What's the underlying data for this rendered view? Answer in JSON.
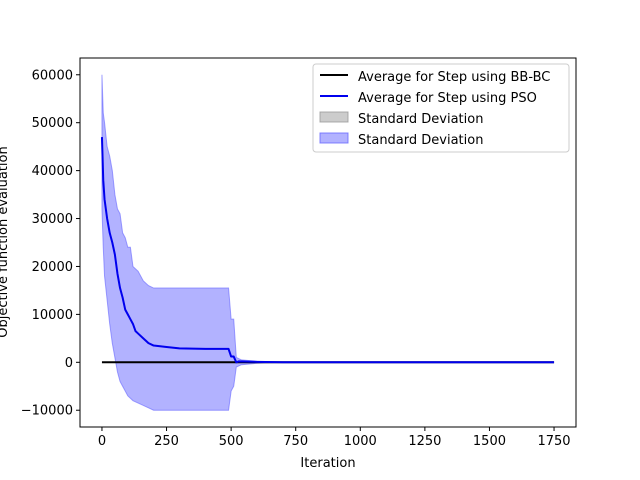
{
  "chart_data": {
    "type": "line",
    "xlabel": "Iteration",
    "ylabel": "Objective function evaluation",
    "xlim": [
      -85,
      1835
    ],
    "ylim": [
      -13500,
      63500
    ],
    "xticks": [
      0,
      250,
      500,
      750,
      1000,
      1250,
      1500,
      1750
    ],
    "yticks": [
      -10000,
      0,
      10000,
      20000,
      30000,
      40000,
      50000,
      60000
    ],
    "grid": false,
    "legend_position": "upper right",
    "series": [
      {
        "name": "Average for Step using BB-BC",
        "kind": "line",
        "color": "#000000",
        "x": [
          0,
          1750
        ],
        "y": [
          0,
          0
        ]
      },
      {
        "name": "Average for Step using PSO",
        "kind": "line",
        "color": "#0000ee",
        "x": [
          0,
          5,
          10,
          20,
          30,
          40,
          50,
          60,
          70,
          80,
          90,
          100,
          110,
          120,
          130,
          140,
          160,
          170,
          180,
          200,
          250,
          300,
          400,
          490,
          500,
          510,
          520,
          530,
          600,
          700,
          1750
        ],
        "y": [
          47000,
          38000,
          34000,
          30000,
          27000,
          25000,
          22500,
          18500,
          15500,
          13500,
          11000,
          10000,
          9000,
          8000,
          6500,
          6000,
          5000,
          4500,
          4000,
          3500,
          3200,
          2900,
          2800,
          2800,
          1200,
          1200,
          0,
          200,
          100,
          0,
          0
        ]
      },
      {
        "name": "Standard Deviation",
        "kind": "band",
        "color": "#999999",
        "x": [
          0,
          1750
        ],
        "upper": [
          0,
          0
        ],
        "lower": [
          0,
          0
        ]
      },
      {
        "name": "Standard Deviation",
        "kind": "band",
        "color": "#6666ff",
        "x": [
          0,
          5,
          10,
          20,
          30,
          40,
          50,
          60,
          70,
          80,
          90,
          100,
          110,
          120,
          140,
          160,
          180,
          200,
          250,
          300,
          400,
          490,
          500,
          510,
          520,
          540,
          600,
          700,
          1750
        ],
        "upper": [
          60000,
          52000,
          50000,
          45000,
          43000,
          40000,
          35000,
          32000,
          31000,
          27000,
          26000,
          24000,
          24000,
          20000,
          19000,
          17000,
          16000,
          15500,
          15500,
          15500,
          15500,
          15500,
          9000,
          9000,
          1000,
          500,
          200,
          0,
          0
        ],
        "lower": [
          32000,
          24000,
          18000,
          13000,
          8000,
          4000,
          1000,
          -2000,
          -4000,
          -5000,
          -6000,
          -7000,
          -7500,
          -8000,
          -8500,
          -9000,
          -9500,
          -10000,
          -10000,
          -10000,
          -10000,
          -10000,
          -6000,
          -5000,
          -1000,
          -500,
          -200,
          0,
          0
        ]
      }
    ]
  }
}
